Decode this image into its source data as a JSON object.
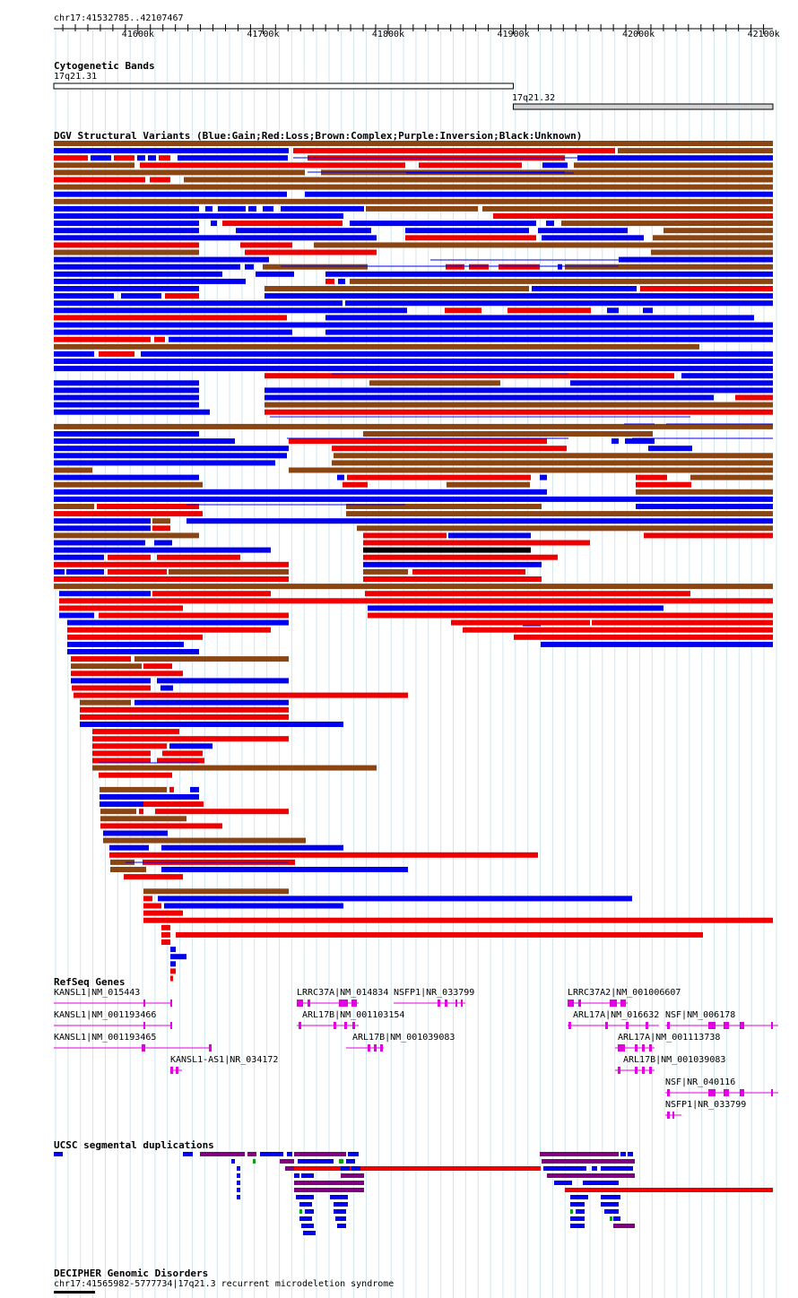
{
  "position_label": "chr17:41532785..42107467",
  "ruler": {
    "start": 41532785,
    "end": 42107467,
    "ticks": [
      "41600k",
      "41700k",
      "41800k",
      "41900k",
      "42000k",
      "42100k"
    ]
  },
  "tracks": {
    "cytobands": {
      "title": "Cytogenetic Bands",
      "bands": [
        {
          "name": "17q21.31",
          "start": 41532785,
          "end": 41900000
        },
        {
          "name": "17q21.32",
          "start": 41900000,
          "end": 42107467
        }
      ]
    },
    "dgv": {
      "title": "DGV Structural Variants (Blue:Gain;Red:Loss;Brown:Complex;Purple:Inversion;Black:Unknown)",
      "colors": {
        "gain": "#0000ee",
        "loss": "#ee0000",
        "complex": "#8b4513",
        "inversion": "#800080",
        "unknown": "#000000"
      }
    },
    "refseq": {
      "title": "RefSeq Genes",
      "color": "#e000e0",
      "genes": [
        {
          "label": "KANSL1|NM_015443"
        },
        {
          "label": "KANSL1|NM_001193466"
        },
        {
          "label": "KANSL1|NM_001193465"
        },
        {
          "label": "KANSL1-AS1|NR_034172"
        },
        {
          "label": "LRRC37A|NM_014834"
        },
        {
          "label": "NSFP1|NR_033799"
        },
        {
          "label": "ARL17B|NM_001103154"
        },
        {
          "label": "ARL17B|NM_001039083"
        },
        {
          "label": "LRRC37A2|NM_001006607"
        },
        {
          "label": "ARL17A|NM_016632"
        },
        {
          "label": "NSF|NM_006178"
        },
        {
          "label": "ARL17A|NM_001113738"
        },
        {
          "label": "ARL17B|NM_001039083"
        },
        {
          "label": "NSF|NR_040116"
        },
        {
          "label": "NSFP1|NR_033799"
        }
      ]
    },
    "segdups": {
      "title": "UCSC segmental duplications",
      "colors": {
        "blue": "#0000ee",
        "purple": "#800080",
        "red": "#ee0000",
        "green": "#00aa00"
      }
    },
    "decipher": {
      "title": "DECIPHER Genomic Disorders",
      "feature_label": "chr17:41565982-5777734|17q21.3 recurrent microdeletion syndrome"
    }
  }
}
